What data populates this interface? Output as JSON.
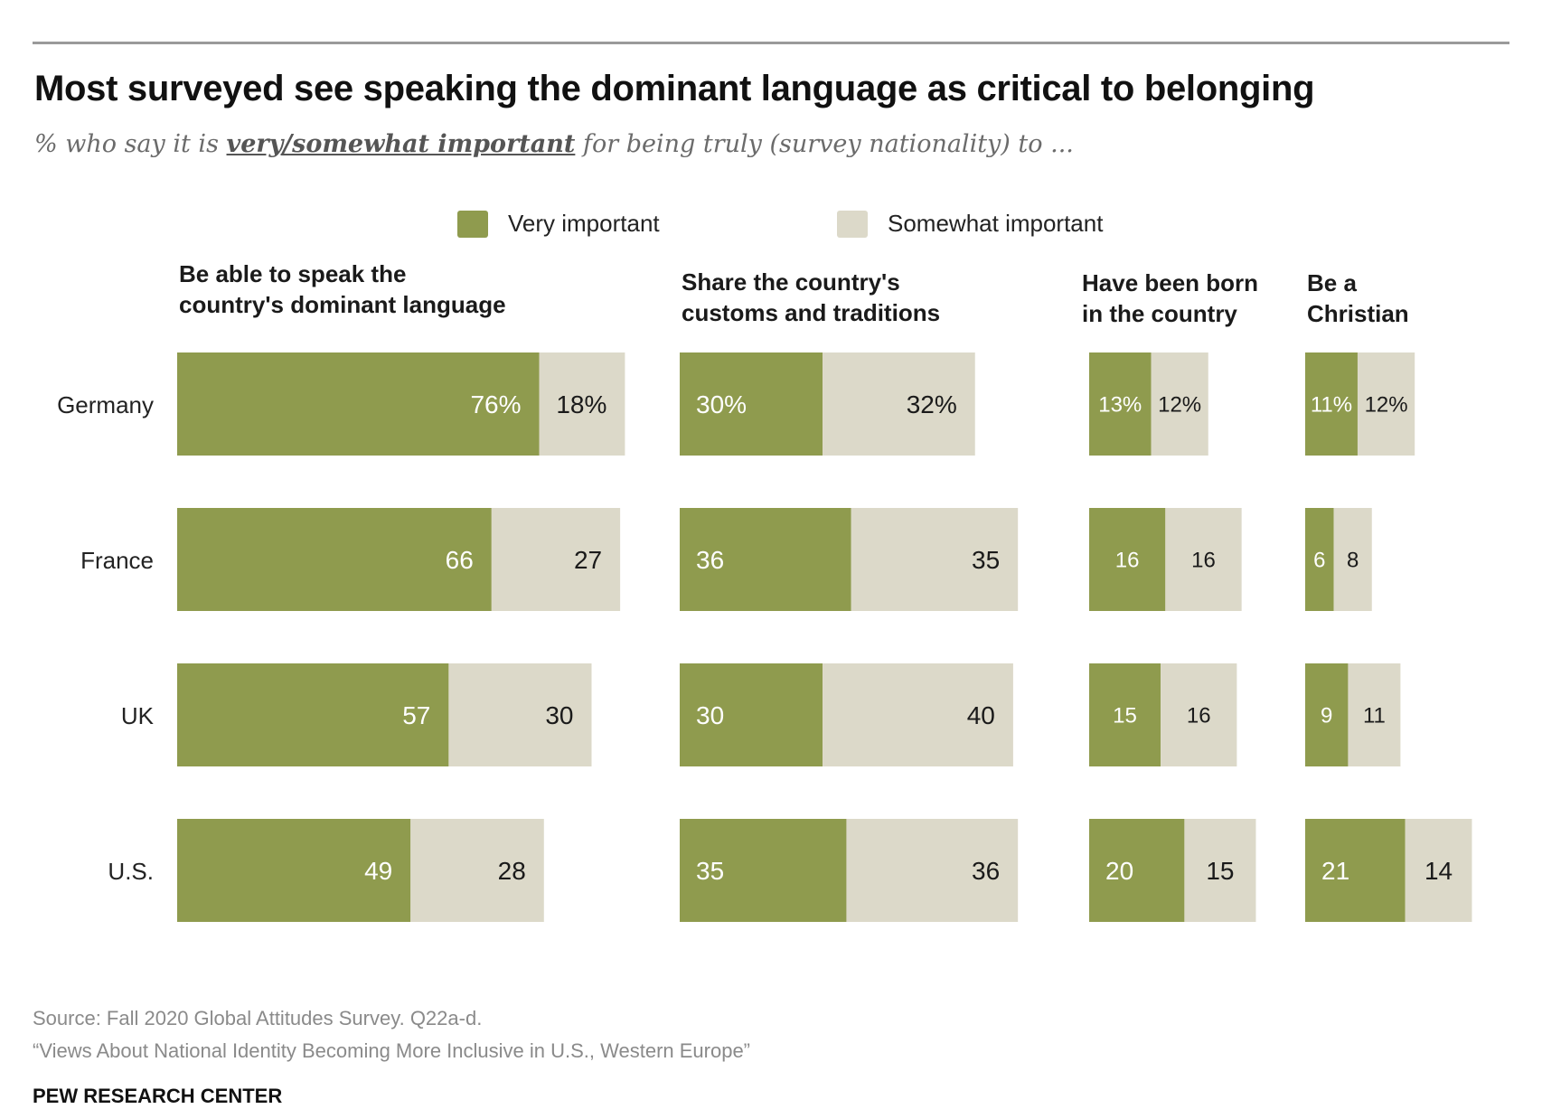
{
  "chart_data": {
    "type": "bar",
    "orientation": "horizontal",
    "stacked": true,
    "title": "Most surveyed see speaking the dominant language as critical to belonging",
    "subtitle": {
      "before": "% who say it is ",
      "emphasis": "very/somewhat important",
      "after": " for being truly (survey nationality) to ..."
    },
    "categories": [
      "Germany",
      "France",
      "UK",
      "U.S."
    ],
    "legend": [
      {
        "name": "Very important",
        "color": "#8f9b4e"
      },
      {
        "name": "Somewhat important",
        "color": "#dcd9c9"
      }
    ],
    "legend_position": "top-center",
    "grid": false,
    "panels": [
      {
        "title_lines": [
          "Be able to speak the",
          "country's dominant language"
        ],
        "series": [
          {
            "name": "Very important",
            "values": [
              76,
              66,
              57,
              49
            ]
          },
          {
            "name": "Somewhat important",
            "values": [
              18,
              27,
              30,
              28
            ]
          }
        ],
        "labels": [
          [
            "76%",
            "18%"
          ],
          [
            "66",
            "27"
          ],
          [
            "57",
            "30"
          ],
          [
            "49",
            "28"
          ]
        ]
      },
      {
        "title_lines": [
          "Share the country's",
          "customs and traditions"
        ],
        "series": [
          {
            "name": "Very important",
            "values": [
              30,
              36,
              30,
              35
            ]
          },
          {
            "name": "Somewhat important",
            "values": [
              32,
              35,
              40,
              36
            ]
          }
        ],
        "labels": [
          [
            "30%",
            "32%"
          ],
          [
            "36",
            "35"
          ],
          [
            "30",
            "40"
          ],
          [
            "35",
            "36"
          ]
        ]
      },
      {
        "title_lines": [
          "Have been born",
          "in the country"
        ],
        "series": [
          {
            "name": "Very important",
            "values": [
              13,
              16,
              15,
              20
            ]
          },
          {
            "name": "Somewhat important",
            "values": [
              12,
              16,
              16,
              15
            ]
          }
        ],
        "labels": [
          [
            "13%",
            "12%"
          ],
          [
            "16",
            "16"
          ],
          [
            "15",
            "16"
          ],
          [
            "20",
            "15"
          ]
        ]
      },
      {
        "title_lines": [
          "Be a",
          "Christian"
        ],
        "series": [
          {
            "name": "Very important",
            "values": [
              11,
              6,
              9,
              21
            ]
          },
          {
            "name": "Somewhat important",
            "values": [
              12,
              8,
              11,
              14
            ]
          }
        ],
        "labels": [
          [
            "11%",
            "12%"
          ],
          [
            "6",
            "8"
          ],
          [
            "9",
            "11"
          ],
          [
            "21",
            "14"
          ]
        ]
      }
    ]
  },
  "footer": {
    "source": "Source: Fall 2020 Global Attitudes Survey. Q22a-d.",
    "report": "“Views About National Identity Becoming More Inclusive in U.S., Western Europe”",
    "brand": "PEW RESEARCH CENTER"
  }
}
